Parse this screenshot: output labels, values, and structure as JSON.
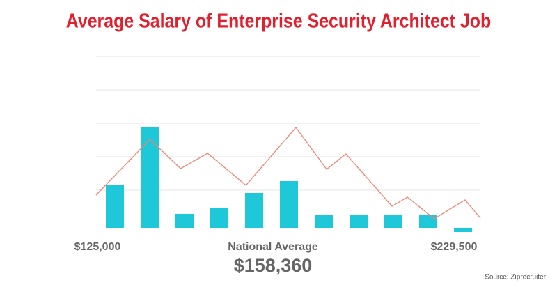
{
  "chart_data": {
    "type": "bar",
    "title": "Average Salary of Enterprise Security Architect Job",
    "min_label": "$125,000",
    "max_label": "$229,500",
    "average_caption": "National Average",
    "average_value": "$158,360",
    "source": "Source: Ziprecruiter",
    "values": [
      62,
      145,
      20,
      28,
      50,
      67,
      18,
      19,
      18,
      19,
      -6
    ],
    "color": "#1fc8d9",
    "line": {
      "color": "#f2806f",
      "x": [
        0,
        14,
        22,
        29,
        39,
        52,
        60,
        65,
        77,
        81,
        88,
        96,
        100
      ],
      "values": [
        47,
        127,
        85,
        107,
        61,
        144,
        84,
        106,
        31,
        44,
        13,
        40,
        14
      ]
    },
    "xlim": [
      0,
      100
    ],
    "ylim": [
      0,
      250
    ],
    "gridlines": [
      54,
      102,
      150,
      198,
      246
    ],
    "grid": true
  }
}
